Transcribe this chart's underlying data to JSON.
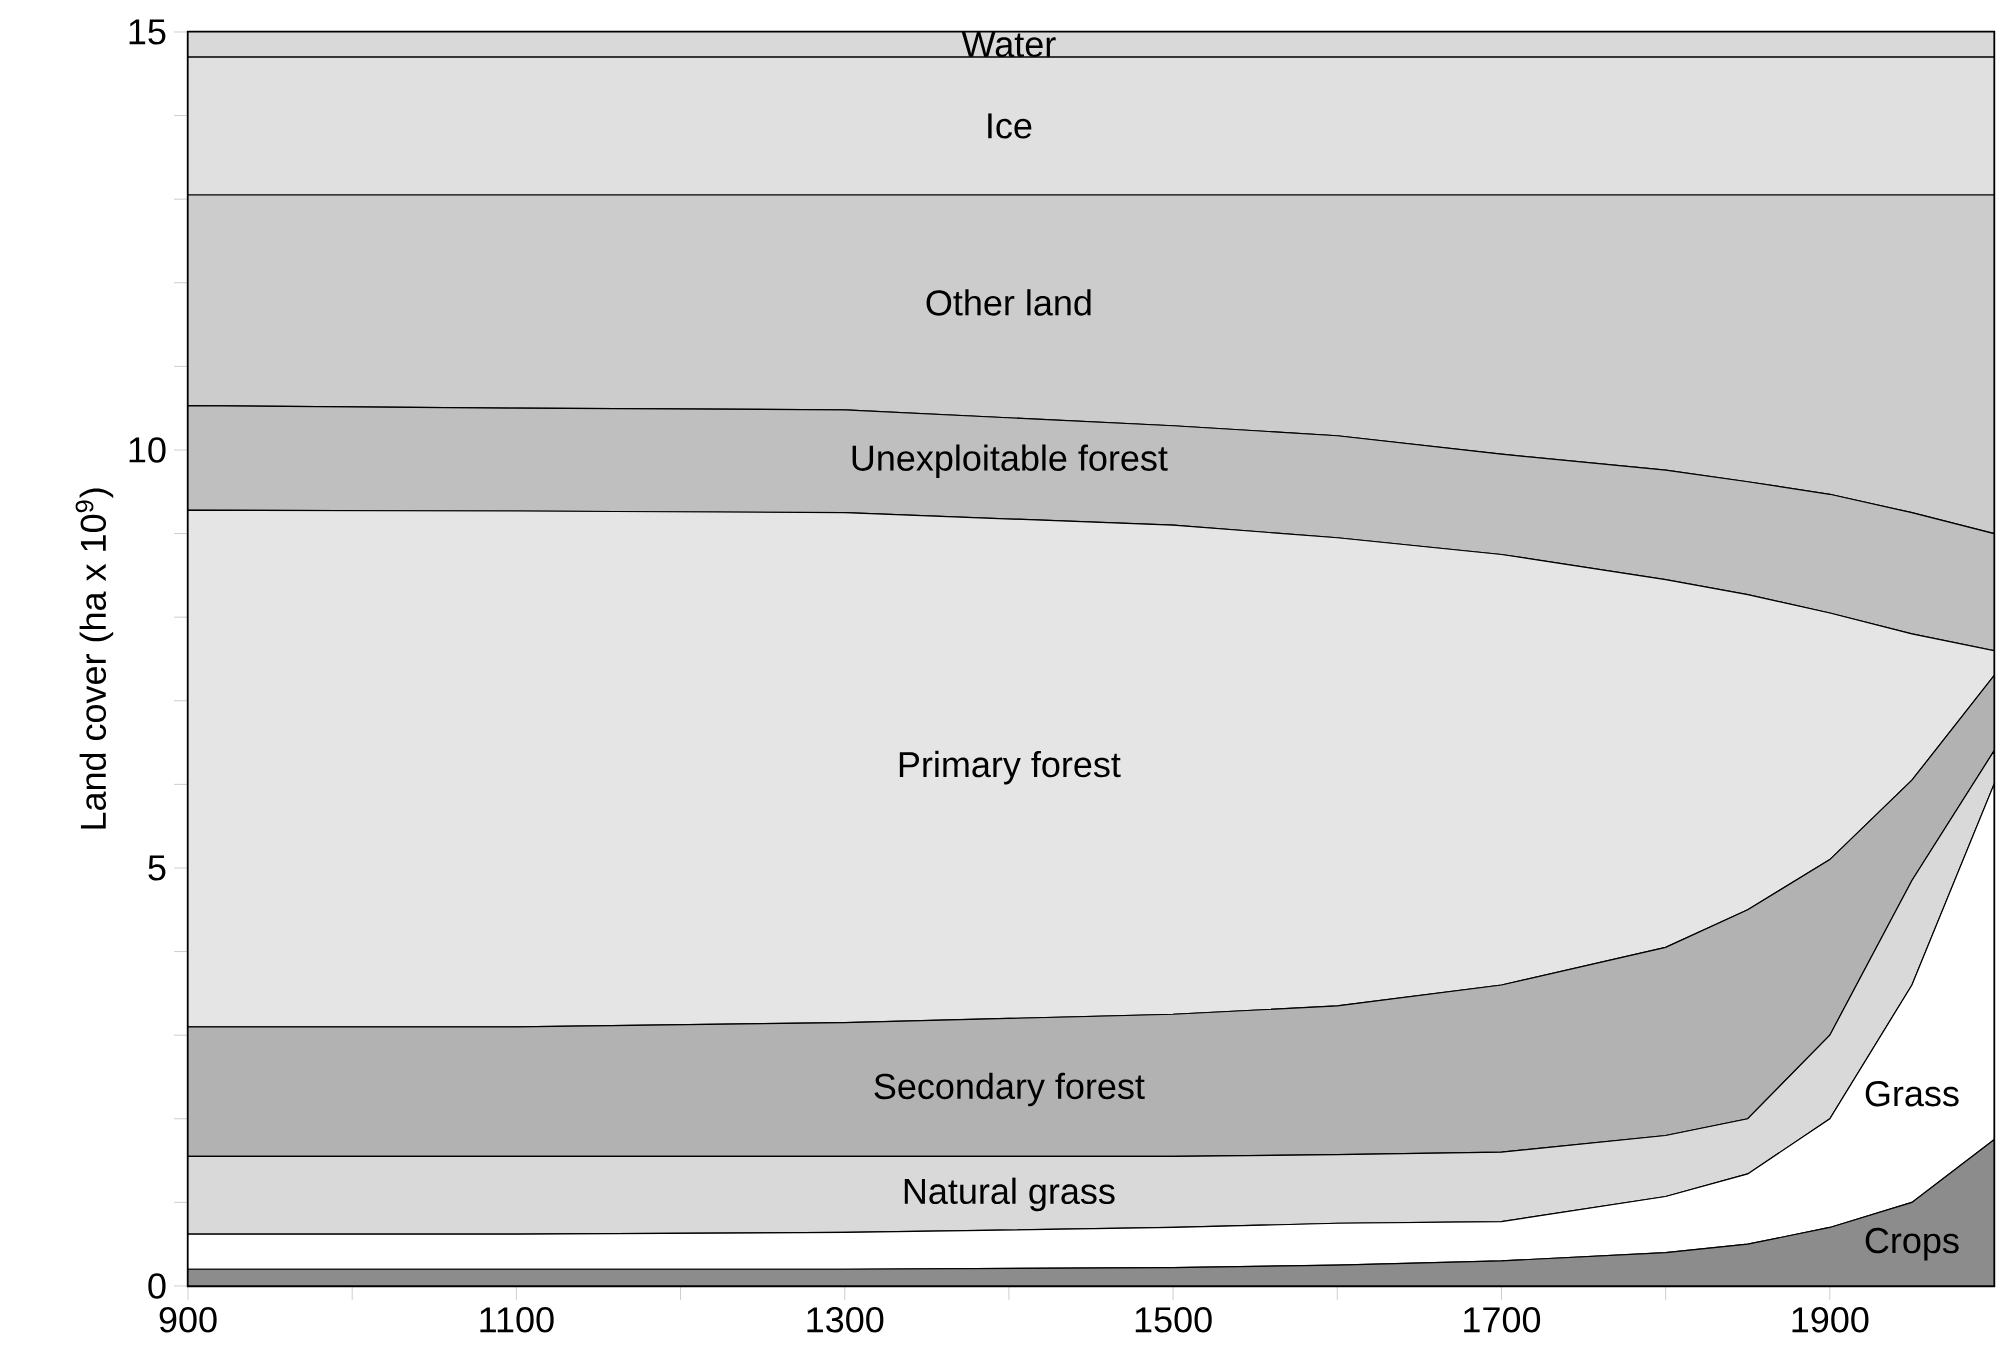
{
  "chart_data": {
    "type": "area",
    "stacked": true,
    "ylabel": "Land cover (ha x 10$^{9}$)",
    "x": [
      900,
      1100,
      1300,
      1500,
      1600,
      1700,
      1800,
      1850,
      1900,
      1950,
      2000
    ],
    "xlim": [
      900,
      2000
    ],
    "ylim": [
      0,
      15
    ],
    "xticks": [
      900,
      {
        "value": 1000,
        "label": null
      },
      1100,
      {
        "value": 1200,
        "label": null
      },
      1300,
      {
        "value": 1400,
        "label": null
      },
      1500,
      {
        "value": 1600,
        "label": null
      },
      1700,
      {
        "value": 1800,
        "label": null
      },
      1900
    ],
    "yticks": [
      0,
      {
        "value": 1,
        "label": null
      },
      {
        "value": 2,
        "label": null
      },
      {
        "value": 3,
        "label": null
      },
      {
        "value": 4,
        "label": null
      },
      5,
      {
        "value": 6,
        "label": null
      },
      {
        "value": 7,
        "label": null
      },
      {
        "value": 8,
        "label": null
      },
      {
        "value": 9,
        "label": null
      },
      10,
      {
        "value": 11,
        "label": null
      },
      {
        "value": 12,
        "label": null
      },
      {
        "value": 13,
        "label": null
      },
      {
        "value": 14,
        "label": null
      },
      15
    ],
    "series": [
      {
        "name": "Crops",
        "color": "#8c8c8c",
        "values": [
          0.2,
          0.2,
          0.2,
          0.22,
          0.25,
          0.3,
          0.4,
          0.5,
          0.7,
          1.0,
          1.75
        ]
      },
      {
        "name": "Grass",
        "color": "#ffffff",
        "values": [
          0.42,
          0.42,
          0.44,
          0.48,
          0.5,
          0.47,
          0.67,
          0.84,
          1.3,
          2.6,
          4.25
        ]
      },
      {
        "name": "Natural grass",
        "color": "#d9d9d9",
        "values": [
          0.93,
          0.93,
          0.91,
          0.85,
          0.82,
          0.83,
          0.73,
          0.66,
          1.0,
          1.25,
          0.4
        ]
      },
      {
        "name": "Secondary forest",
        "color": "#b2b2b2",
        "values": [
          1.55,
          1.55,
          1.6,
          1.7,
          1.78,
          2.0,
          2.25,
          2.5,
          2.1,
          1.2,
          0.9
        ]
      },
      {
        "name": "Primary forest",
        "color": "#e5e5e5",
        "values": [
          6.18,
          6.17,
          6.1,
          5.85,
          5.6,
          5.15,
          4.4,
          3.77,
          2.95,
          1.75,
          0.3
        ]
      },
      {
        "name": "Unexploitable forest",
        "color": "#bfbfbf",
        "values": [
          1.25,
          1.23,
          1.23,
          1.19,
          1.22,
          1.2,
          1.31,
          1.35,
          1.42,
          1.45,
          1.4
        ]
      },
      {
        "name": "Other land",
        "color": "#cccccc",
        "values": [
          2.52,
          2.55,
          2.57,
          2.76,
          2.88,
          3.1,
          3.29,
          3.43,
          3.58,
          3.8,
          4.05
        ]
      },
      {
        "name": "Ice",
        "color": "#e0e0e0",
        "values": [
          1.65,
          1.65,
          1.65,
          1.65,
          1.65,
          1.65,
          1.65,
          1.65,
          1.65,
          1.65,
          1.65
        ]
      },
      {
        "name": "Water",
        "color": "#d9d9d9",
        "values": [
          0.3,
          0.3,
          0.3,
          0.3,
          0.3,
          0.3,
          0.3,
          0.3,
          0.3,
          0.3,
          0.3
        ]
      }
    ]
  }
}
